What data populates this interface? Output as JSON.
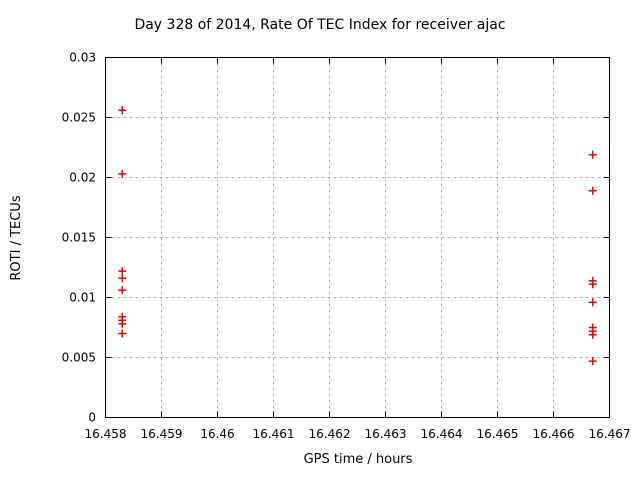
{
  "colors": {
    "background": "#ffffff",
    "axis": "#000000",
    "grid": "#b0b0b0",
    "text": "#000000",
    "marker": "#ee0000"
  },
  "chart_data": {
    "type": "scatter",
    "title": "Day 328 of 2014, Rate Of TEC Index for receiver ajac",
    "xlabel": "GPS time / hours",
    "ylabel": "ROTI / TECUs",
    "xlim": [
      16.458,
      16.467
    ],
    "ylim": [
      0,
      0.03
    ],
    "x_ticks": [
      16.458,
      16.459,
      16.46,
      16.461,
      16.462,
      16.463,
      16.464,
      16.465,
      16.466,
      16.467
    ],
    "x_tick_labels": [
      "16.458",
      "16.459",
      "16.46",
      "16.461",
      "16.462",
      "16.463",
      "16.464",
      "16.465",
      "16.466",
      "16.467"
    ],
    "y_ticks": [
      0,
      0.005,
      0.01,
      0.015,
      0.02,
      0.025,
      0.03
    ],
    "y_tick_labels": [
      "0",
      "0.005",
      "0.01",
      "0.015",
      "0.02",
      "0.025",
      "0.03"
    ],
    "grid": true,
    "legend": "none",
    "marker": "plus",
    "series": [
      {
        "name": "ROTI",
        "color": "#ee0000",
        "points": [
          [
            16.4583,
            0.0256
          ],
          [
            16.4583,
            0.0203
          ],
          [
            16.4583,
            0.0122
          ],
          [
            16.4583,
            0.0116
          ],
          [
            16.4583,
            0.0106
          ],
          [
            16.4583,
            0.0084
          ],
          [
            16.4583,
            0.0081
          ],
          [
            16.4583,
            0.0078
          ],
          [
            16.4583,
            0.007
          ],
          [
            16.4667,
            0.0219
          ],
          [
            16.4667,
            0.0189
          ],
          [
            16.4667,
            0.0114
          ],
          [
            16.4667,
            0.0111
          ],
          [
            16.4667,
            0.0096
          ],
          [
            16.4667,
            0.0075
          ],
          [
            16.4667,
            0.0072
          ],
          [
            16.4667,
            0.0069
          ],
          [
            16.4667,
            0.0047
          ]
        ]
      }
    ]
  }
}
